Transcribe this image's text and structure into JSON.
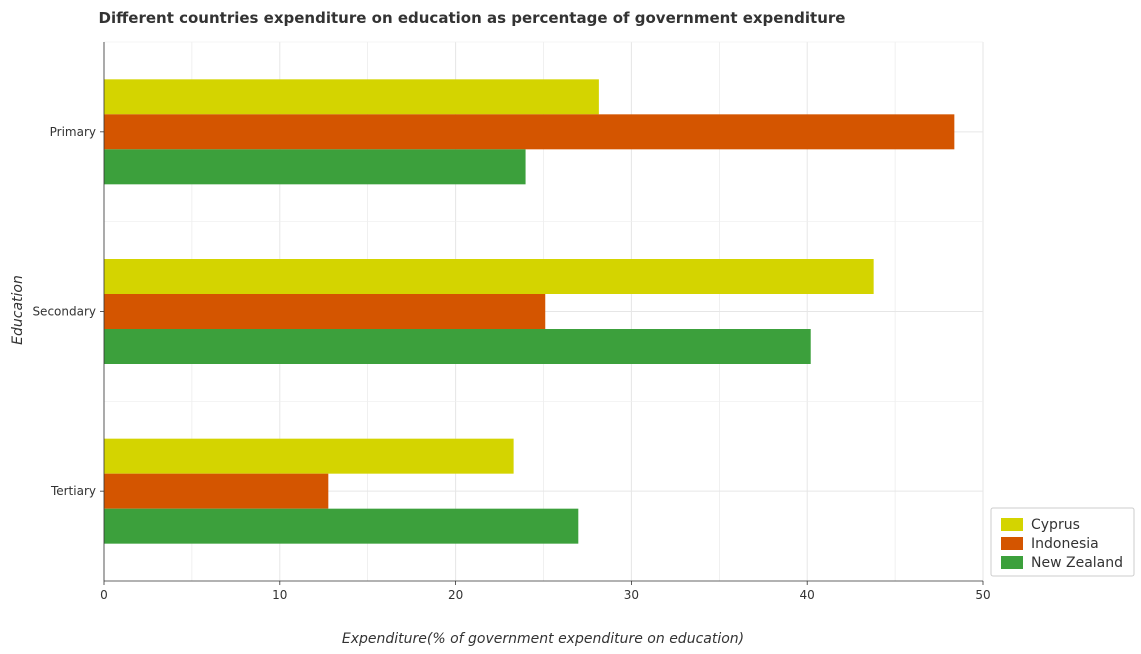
{
  "chart_data": {
    "type": "bar",
    "orientation": "horizontal",
    "title": "Different countries expenditure on education as percentage of government expenditure",
    "xlabel": "Expenditure(% of government expenditure on education)",
    "ylabel": "Education",
    "categories": [
      "Primary",
      "Secondary",
      "Tertiary"
    ],
    "xlim": [
      0,
      50
    ],
    "xticks": [
      "0",
      "10",
      "20",
      "30",
      "40",
      "50"
    ],
    "grid": true,
    "legend_position": "bottom-right",
    "series": [
      {
        "name": "Cyprus",
        "color": "#d4d400",
        "values": [
          28.15,
          43.78,
          23.3
        ]
      },
      {
        "name": "Indonesia",
        "color": "#d45500",
        "values": [
          48.37,
          25.1,
          12.76
        ]
      },
      {
        "name": "New Zealand",
        "color": "#3ca03c",
        "values": [
          23.98,
          40.2,
          26.98
        ]
      }
    ]
  }
}
